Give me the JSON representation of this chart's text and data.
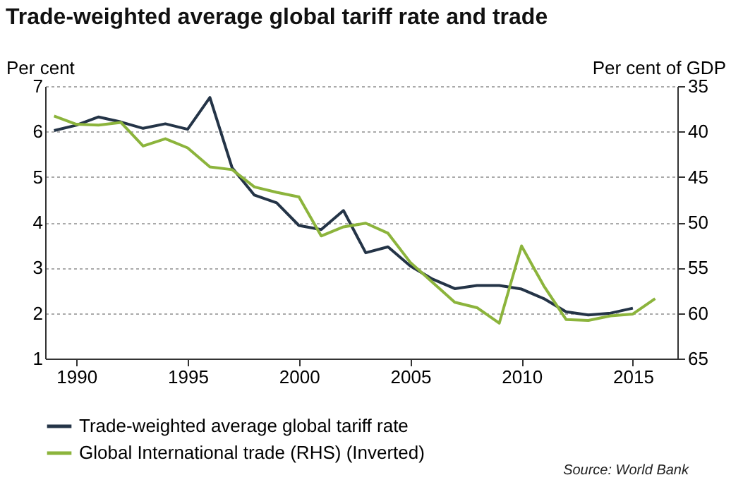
{
  "chart_data": {
    "type": "line",
    "title": "Trade-weighted average global tariff rate and trade",
    "ylabel": "Per cent",
    "y2label": "Per cent of GDP",
    "x": [
      1989,
      1990,
      1991,
      1992,
      1993,
      1994,
      1995,
      1996,
      1997,
      1998,
      1999,
      2000,
      2001,
      2002,
      2003,
      2004,
      2005,
      2006,
      2007,
      2008,
      2009,
      2010,
      2011,
      2012,
      2013,
      2014,
      2015,
      2016
    ],
    "series": [
      {
        "name": "Trade-weighted average global tariff rate",
        "color": "#243447",
        "values": [
          6.02,
          6.14,
          6.32,
          6.21,
          6.07,
          6.17,
          6.05,
          6.75,
          5.2,
          4.6,
          4.43,
          3.93,
          3.84,
          4.26,
          3.33,
          3.46,
          3.04,
          2.75,
          2.54,
          2.61,
          2.61,
          2.53,
          2.32,
          2.03,
          1.96,
          2.0,
          2.11,
          null
        ]
      },
      {
        "name": "Global International trade (RHS) (Inverted)",
        "color": "#8cb43c",
        "axis": "y2",
        "values": [
          38.3,
          39.2,
          39.3,
          39.0,
          41.6,
          40.8,
          41.8,
          43.9,
          44.2,
          46.1,
          46.7,
          47.2,
          51.5,
          50.5,
          50.1,
          51.2,
          54.4,
          56.6,
          58.8,
          59.4,
          61.1,
          52.6,
          57.0,
          60.7,
          60.8,
          60.3,
          60.1,
          58.4
        ]
      }
    ],
    "xlim": [
      1988.6,
      2017
    ],
    "xticks": [
      1990,
      1995,
      2000,
      2005,
      2010,
      2015
    ],
    "ylim": [
      1,
      7
    ],
    "yticks": [
      1,
      2,
      3,
      4,
      5,
      6,
      7
    ],
    "y2lim": [
      65,
      35
    ],
    "y2ticks": [
      65,
      60,
      55,
      50,
      45,
      40,
      35
    ],
    "grid": "y",
    "legend": "bottom",
    "line_style": "solid",
    "annotations": [
      "Source: World Bank"
    ]
  }
}
